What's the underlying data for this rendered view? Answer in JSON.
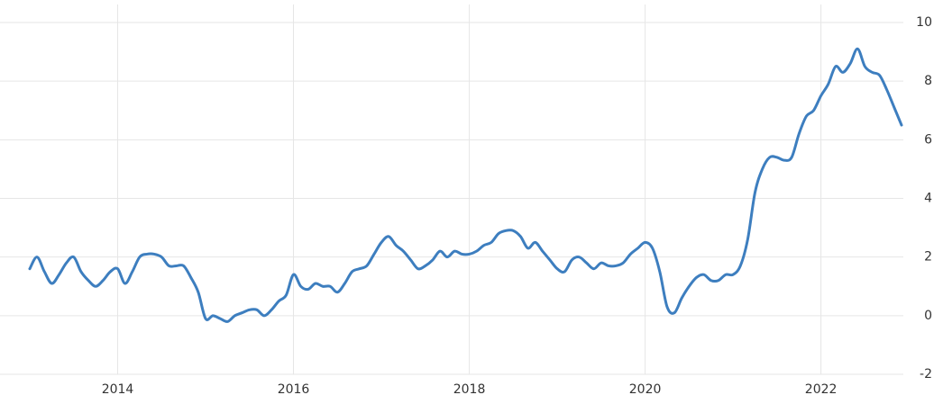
{
  "chart_data": {
    "type": "line",
    "categories": [
      null,
      null,
      null,
      null,
      null,
      null,
      null,
      null,
      null,
      null,
      null,
      null,
      "2014",
      null,
      null,
      null,
      null,
      null,
      null,
      null,
      null,
      null,
      null,
      null,
      null,
      null,
      null,
      null,
      null,
      null,
      null,
      null,
      null,
      null,
      null,
      null,
      "2016",
      null,
      null,
      null,
      null,
      null,
      null,
      null,
      null,
      null,
      null,
      null,
      null,
      null,
      null,
      null,
      null,
      null,
      null,
      null,
      null,
      null,
      null,
      null,
      "2018",
      null,
      null,
      null,
      null,
      null,
      null,
      null,
      null,
      null,
      null,
      null,
      null,
      null,
      null,
      null,
      null,
      null,
      null,
      null,
      null,
      null,
      null,
      null,
      "2020",
      null,
      null,
      null,
      null,
      null,
      null,
      null,
      null,
      null,
      null,
      null,
      null,
      null,
      null,
      null,
      null,
      null,
      null,
      null,
      null,
      null,
      null,
      null,
      "2022",
      null,
      null,
      null,
      null,
      null,
      null,
      null,
      null,
      null,
      null,
      null
    ],
    "series": [
      {
        "color": "#3d7ebf",
        "values": [
          1.6,
          2.0,
          1.5,
          1.1,
          1.4,
          1.8,
          2.0,
          1.5,
          1.2,
          1.0,
          1.2,
          1.5,
          1.6,
          1.1,
          1.5,
          2.0,
          2.1,
          2.1,
          2.0,
          1.7,
          1.7,
          1.7,
          1.3,
          0.8,
          -0.1,
          0.0,
          -0.1,
          -0.2,
          0.0,
          0.1,
          0.2,
          0.2,
          0.0,
          0.2,
          0.5,
          0.7,
          1.4,
          1.0,
          0.9,
          1.1,
          1.0,
          1.0,
          0.8,
          1.1,
          1.5,
          1.6,
          1.7,
          2.1,
          2.5,
          2.7,
          2.4,
          2.2,
          1.9,
          1.6,
          1.7,
          1.9,
          2.2,
          2.0,
          2.2,
          2.1,
          2.1,
          2.2,
          2.4,
          2.5,
          2.8,
          2.9,
          2.9,
          2.7,
          2.3,
          2.5,
          2.2,
          1.9,
          1.6,
          1.5,
          1.9,
          2.0,
          1.8,
          1.6,
          1.8,
          1.7,
          1.7,
          1.8,
          2.1,
          2.3,
          2.5,
          2.3,
          1.5,
          0.3,
          0.1,
          0.6,
          1.0,
          1.3,
          1.4,
          1.2,
          1.2,
          1.4,
          1.4,
          1.7,
          2.6,
          4.2,
          5.0,
          5.4,
          5.4,
          5.3,
          5.4,
          6.2,
          6.8,
          7.0,
          7.5,
          7.9,
          8.5,
          8.3,
          8.6,
          9.1,
          8.5,
          8.3,
          8.2,
          7.7,
          7.1,
          6.5
        ]
      }
    ],
    "ylim": [
      -2,
      10
    ],
    "yticks": [
      -2,
      0,
      2,
      4,
      6,
      8,
      10
    ],
    "grid": true
  }
}
